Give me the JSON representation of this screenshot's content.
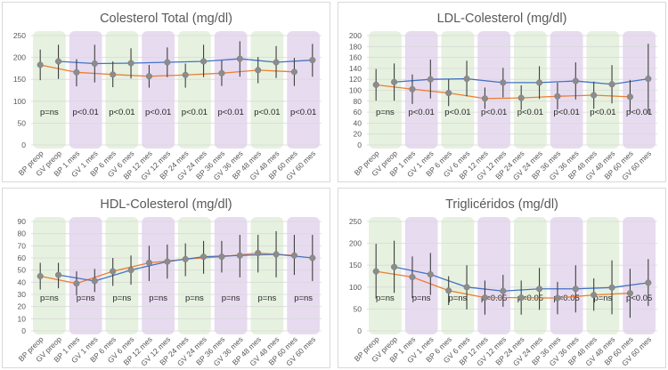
{
  "colors": {
    "bp_line": "#ED7D31",
    "gv_line": "#4472C4",
    "marker": "#8c8c8c",
    "errorbar": "#404040",
    "band_green": "#E2EFD9",
    "band_purple": "#E4D7EE",
    "gridline": "#d9d9d9"
  },
  "chart_data": [
    {
      "type": "line",
      "title": "Colesterol Total (mg/dl)",
      "xlabel": "",
      "ylabel": "",
      "ylim": [
        0,
        250
      ],
      "yticks": [
        0,
        50,
        100,
        150,
        200,
        250
      ],
      "grid": true,
      "categories": [
        "BP preop",
        "GV preop",
        "BP 1 mes",
        "GV 1 mes",
        "BP 6 mes",
        "GV 6 mes",
        "BP 12 mes",
        "GV 12 mes",
        "BP 24 mes",
        "GV 24 mes",
        "BP 36 mes",
        "GV 36 mes",
        "BP 48 mes",
        "GV 48 mes",
        "BP 60 mes",
        "GV 60 mes"
      ],
      "series": [
        {
          "name": "BP",
          "color": "#ED7D31",
          "values": [
            183,
            166,
            161,
            157,
            160,
            164,
            171,
            167
          ],
          "lower": [
            148,
            134,
            132,
            131,
            131,
            135,
            141,
            135
          ],
          "upper": [
            218,
            196,
            191,
            183,
            186,
            193,
            201,
            199
          ]
        },
        {
          "name": "GV",
          "color": "#4472C4",
          "values": [
            191,
            186,
            187,
            189,
            191,
            197,
            189,
            194
          ],
          "lower": [
            151,
            143,
            152,
            155,
            155,
            156,
            153,
            156
          ],
          "upper": [
            229,
            229,
            221,
            223,
            229,
            237,
            226,
            231
          ]
        }
      ],
      "band_colors": [
        "green",
        "purple",
        "green",
        "purple",
        "green",
        "purple",
        "green",
        "purple"
      ],
      "p_values": [
        "p=ns",
        "p<0.01",
        "p<0.01",
        "p<0.01",
        "p<0.01",
        "p<0.01",
        "p<0.01",
        "p<0.01"
      ]
    },
    {
      "type": "line",
      "title": "LDL-Colesterol (mg/dl)",
      "xlabel": "",
      "ylabel": "",
      "ylim": [
        0,
        200
      ],
      "yticks": [
        0,
        20,
        40,
        60,
        80,
        100,
        120,
        140,
        160,
        180,
        200
      ],
      "grid": true,
      "categories": [
        "BP preop",
        "GV preop",
        "BP 1 mes",
        "GV 1 mes",
        "BP 6 mes",
        "GV 6 mes",
        "BP 12 mes",
        "GV 12 mes",
        "BP 24 mes",
        "GV 24 mes",
        "BP 36 mes",
        "GV 36 mes",
        "BP 48 mes",
        "GV 48 mes",
        "BP 60 mes",
        "GV 60 mes"
      ],
      "series": [
        {
          "name": "BP",
          "color": "#ED7D31",
          "values": [
            110,
            102,
            95,
            85,
            86,
            89,
            91,
            88
          ],
          "lower": [
            81,
            75,
            71,
            66,
            64,
            65,
            66,
            57
          ],
          "upper": [
            139,
            129,
            120,
            105,
            109,
            114,
            116,
            119
          ]
        },
        {
          "name": "GV",
          "color": "#4472C4",
          "values": [
            115,
            120,
            121,
            114,
            114,
            117,
            111,
            121
          ],
          "lower": [
            81,
            85,
            89,
            87,
            84,
            83,
            76,
            57
          ],
          "upper": [
            149,
            156,
            154,
            141,
            144,
            151,
            146,
            185
          ]
        }
      ],
      "band_colors": [
        "green",
        "purple",
        "green",
        "purple",
        "green",
        "purple",
        "green",
        "purple"
      ],
      "p_values": [
        "p=ns",
        "p<0.01",
        "p<0.01",
        "p<0.01",
        "p<0.01",
        "p<0.01",
        "p<0.01",
        "p<0.01"
      ]
    },
    {
      "type": "line",
      "title": "HDL-Colesterol (mg/dl)",
      "xlabel": "",
      "ylabel": "",
      "ylim": [
        0,
        90
      ],
      "yticks": [
        0,
        10,
        20,
        30,
        40,
        50,
        60,
        70,
        80,
        90
      ],
      "grid": true,
      "categories": [
        "BP preop",
        "GV preop",
        "BP 1 mes",
        "GV 1 mes",
        "BP 6 mes",
        "GV 6 mes",
        "BP 12 mes",
        "GV 12 mes",
        "BP 24 mes",
        "GV 24 mes",
        "BP 36 mes",
        "GV 36 mes",
        "BP 48 mes",
        "GV 48 mes",
        "BP 60 mes",
        "GV 60 mes"
      ],
      "series": [
        {
          "name": "BP",
          "color": "#ED7D31",
          "values": [
            45,
            39,
            49,
            56,
            59,
            61,
            64,
            62
          ],
          "lower": [
            34,
            29,
            37,
            41,
            45,
            48,
            48,
            46
          ],
          "upper": [
            56,
            49,
            60,
            70,
            72,
            74,
            79,
            79
          ]
        },
        {
          "name": "GV",
          "color": "#4472C4",
          "values": [
            46,
            41,
            50,
            57,
            61,
            62,
            63,
            60
          ],
          "lower": [
            35,
            32,
            38,
            43,
            47,
            44,
            44,
            41
          ],
          "upper": [
            56,
            51,
            62,
            71,
            74,
            79,
            82,
            79
          ]
        }
      ],
      "band_colors": [
        "green",
        "purple",
        "green",
        "purple",
        "green",
        "purple",
        "green",
        "purple"
      ],
      "p_values": [
        "p=ns",
        "p=ns",
        "p=ns",
        "p=ns",
        "p=ns",
        "p=ns",
        "p=ns",
        "p=ns"
      ]
    },
    {
      "type": "line",
      "title": "Triglicéridos (mg/dl)",
      "xlabel": "",
      "ylabel": "",
      "ylim": [
        0,
        250
      ],
      "yticks": [
        0,
        50,
        100,
        150,
        200,
        250
      ],
      "grid": true,
      "categories": [
        "BP preop",
        "GV preop",
        "BP 1 mes",
        "GV 1 mes",
        "BP 6 mes",
        "GV 6 mes",
        "BP 12 mes",
        "GV 12 mes",
        "BP 24 mes",
        "GV 24 mes",
        "BP 36 mes",
        "GV 36 mes",
        "BP 48 mes",
        "GV 48 mes",
        "BP 60 mes",
        "GV 60 mes"
      ],
      "series": [
        {
          "name": "BP",
          "color": "#ED7D31",
          "values": [
            136,
            123,
            92,
            76,
            76,
            75,
            82,
            86
          ],
          "lower": [
            74,
            75,
            59,
            37,
            37,
            38,
            46,
            30
          ],
          "upper": [
            199,
            170,
            125,
            115,
            115,
            112,
            120,
            142
          ]
        },
        {
          "name": "GV",
          "color": "#4472C4",
          "values": [
            146,
            129,
            100,
            91,
            96,
            96,
            99,
            110
          ],
          "lower": [
            87,
            82,
            49,
            55,
            48,
            42,
            38,
            57
          ],
          "upper": [
            206,
            178,
            150,
            128,
            144,
            150,
            161,
            164
          ]
        }
      ],
      "band_colors": [
        "green",
        "purple",
        "green",
        "purple",
        "green",
        "purple",
        "green",
        "purple"
      ],
      "p_values": [
        "p=ns",
        "p=ns",
        "p=ns",
        "p<0.05",
        "p<0.05",
        "p<0.05",
        "p=ns",
        "p<0.05"
      ]
    }
  ]
}
